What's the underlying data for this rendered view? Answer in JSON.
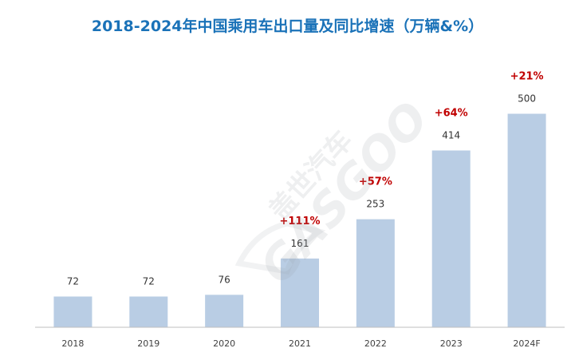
{
  "chart_data": {
    "type": "bar",
    "title": "2018-2024年中国乘用车出口量及同比增速（万辆&%）",
    "categories": [
      "2018",
      "2019",
      "2020",
      "2021",
      "2022",
      "2023",
      "2024F"
    ],
    "values": [
      72,
      72,
      76,
      161,
      253,
      414,
      500
    ],
    "growth": [
      "",
      "",
      "",
      "+111%",
      "+57%",
      "+64%",
      "+21%"
    ],
    "xlabel": "",
    "ylabel": "",
    "ylim": [
      0,
      560
    ],
    "grid": false,
    "legend": "none"
  },
  "watermark": {
    "cn_text": "盖世汽车",
    "en_text": "GASGOO"
  },
  "colors": {
    "bar": "#b9cde4",
    "title": "#1a72b8",
    "growth": "#c00000",
    "value_label": "#333333",
    "axis": "#bfbfbf",
    "tick": "#404040"
  }
}
